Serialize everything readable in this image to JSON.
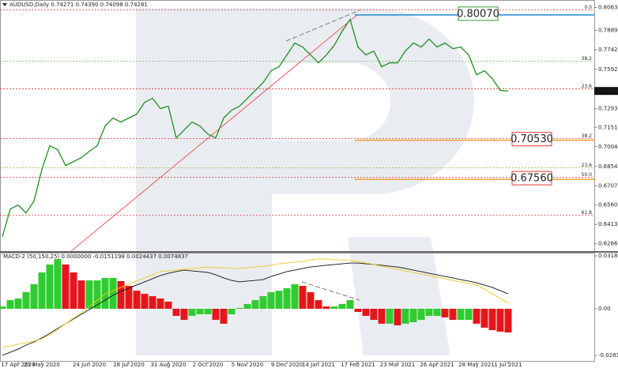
{
  "chart_data": [
    {
      "type": "line",
      "title": "AUDUSD,Daily  0.74271 0.74390 0.74098 0.74281",
      "values": [
        0.632,
        0.653,
        0.656,
        0.65,
        0.6591,
        0.6831,
        0.7011,
        0.6981,
        0.6861,
        0.6891,
        0.6921,
        0.6969,
        0.7011,
        0.7161,
        0.7222,
        0.7192,
        0.7222,
        0.7252,
        0.7342,
        0.7372,
        0.7294,
        0.7312,
        0.7071,
        0.7131,
        0.7192,
        0.7161,
        0.7101,
        0.7071,
        0.7222,
        0.7282,
        0.7312,
        0.7372,
        0.7432,
        0.7492,
        0.7582,
        0.7612,
        0.7702,
        0.7793,
        0.7762,
        0.7702,
        0.7642,
        0.7702,
        0.7775,
        0.7883,
        0.7973,
        0.7762,
        0.7702,
        0.7732,
        0.7612,
        0.7642,
        0.7642,
        0.7732,
        0.7793,
        0.7762,
        0.7823,
        0.7762,
        0.7793,
        0.775,
        0.7762,
        0.7702,
        0.7552,
        0.7582,
        0.7522,
        0.7432,
        0.7428
      ],
      "color": "#1f8f1f",
      "ylim": [
        0.621,
        0.812
      ],
      "yticks": [
        {
          "value": 0.8063,
          "label": "0.80630"
        },
        {
          "value": 0.7889,
          "label": "0.78890"
        },
        {
          "value": 0.7742,
          "label": "0.77420"
        },
        {
          "value": 0.7592,
          "label": "0.75920"
        },
        {
          "value": 0.7293,
          "label": "0.72930"
        },
        {
          "value": 0.7151,
          "label": "0.71510"
        },
        {
          "value": 0.7004,
          "label": "0.70040"
        },
        {
          "value": 0.6854,
          "label": "0.68540"
        },
        {
          "value": 0.6707,
          "label": "0.67070"
        },
        {
          "value": 0.656,
          "label": "0.65600"
        },
        {
          "value": 0.6413,
          "label": "0.64130"
        },
        {
          "value": 0.6266,
          "label": "0.62660"
        }
      ],
      "levels": [
        {
          "label": "0.0",
          "value": 0.8045,
          "color": "#e53935"
        },
        {
          "label": "38.2",
          "value": 0.7654,
          "color": "#7cc46a"
        },
        {
          "label": "23.6",
          "value": 0.7444,
          "color": "#e53935"
        },
        {
          "label": "38.2",
          "value": 0.7065,
          "color": "#e53935"
        },
        {
          "label": "23.6",
          "value": 0.6843,
          "color": "#8ab020"
        },
        {
          "label": "50.0",
          "value": 0.6771,
          "color": "#e53935"
        },
        {
          "label": "61.8",
          "value": 0.6482,
          "color": "#e53935"
        }
      ],
      "price_labels": [
        {
          "value": 0.8007,
          "label": "0.80070",
          "color": "#1e88d0",
          "text_color": "#2e9e2e"
        },
        {
          "value": 0.7053,
          "label": "0.70530",
          "color": "#f0a030",
          "text_color": "#e53935"
        },
        {
          "value": 0.6756,
          "label": "0.67560",
          "color": "#f0a030",
          "text_color": "#e53935"
        }
      ],
      "last_price": 0.74281
    },
    {
      "type": "bar",
      "title": "MACD-2 (50,150,25) 0.0000000 -0.0151198 0.0024437 0.0074837",
      "categories": [
        null,
        null,
        "17 Apr 2020",
        null,
        null,
        "21 May 2020",
        null,
        null,
        null,
        null,
        null,
        "24 Jun 2020",
        null,
        null,
        null,
        null,
        "28 Jul 2020",
        null,
        null,
        null,
        null,
        "31 Aug 2020",
        null,
        null,
        null,
        null,
        "2 Oct 2020",
        null,
        null,
        null,
        null,
        "5 Nov 2020",
        null,
        null,
        null,
        null,
        "9 Dec 2020",
        null,
        null,
        null,
        "14 Jan 2021",
        null,
        null,
        null,
        null,
        "17 Feb 2021",
        null,
        null,
        null,
        null,
        "23 Mar 2021",
        null,
        null,
        null,
        null,
        "26 Apr 2021",
        null,
        null,
        null,
        null,
        "28 May 2021",
        null,
        null,
        null,
        "1 Jul 2021"
      ],
      "values": [
        0.0014,
        0.0052,
        0.0062,
        0.01,
        0.0148,
        0.0219,
        0.0267,
        0.03,
        0.0267,
        0.0219,
        0.0171,
        0.0171,
        0.0171,
        0.0186,
        0.0186,
        0.0167,
        0.0138,
        0.0109,
        0.009,
        0.0076,
        0.0062,
        0.0043,
        -0.0043,
        -0.0067,
        -0.0043,
        -0.0033,
        -0.0033,
        -0.0067,
        -0.009,
        -0.0033,
        0.0005,
        0.0029,
        0.0052,
        0.0076,
        0.01,
        0.0109,
        0.0124,
        0.0148,
        0.0138,
        0.01,
        0.0052,
        0.0014,
        0.0014,
        0.0029,
        0.0052,
        -0.0019,
        -0.0043,
        -0.0067,
        -0.009,
        -0.009,
        -0.01,
        -0.009,
        -0.0081,
        -0.0067,
        -0.0043,
        -0.0043,
        -0.0052,
        -0.0067,
        -0.0067,
        -0.0067,
        -0.009,
        -0.0114,
        -0.0129,
        -0.0138,
        -0.0143
      ],
      "up_color": "#2ecc2e",
      "down_color": "#e3171b",
      "lines": [
        {
          "color": "#111111",
          "values": [
            -0.0281,
            -0.0262,
            -0.0243,
            -0.0219,
            -0.02,
            -0.0176,
            -0.0148,
            -0.0119,
            -0.009,
            -0.0062,
            -0.0033,
            -0.0005,
            0.0024,
            0.0052,
            0.0081,
            0.0105,
            0.0124,
            0.0143,
            0.0162,
            0.0181,
            0.02,
            0.0214,
            0.0224,
            0.0233,
            0.0228,
            0.0224,
            0.0219,
            0.0205,
            0.0186,
            0.0171,
            0.0162,
            0.0167,
            0.0171,
            0.0176,
            0.0195,
            0.0209,
            0.0224,
            0.0233,
            0.0243,
            0.0252,
            0.0257,
            0.0262,
            0.0267,
            0.0271,
            0.0276,
            0.0276,
            0.0271,
            0.0267,
            0.0262,
            0.0257,
            0.0252,
            0.0243,
            0.0233,
            0.0224,
            0.0214,
            0.0205,
            0.0195,
            0.0186,
            0.0176,
            0.0167,
            0.0157,
            0.0143,
            0.0129,
            0.0109,
            0.009
          ]
        },
        {
          "color": "#f2c61f",
          "values": [
            -0.0233,
            -0.0224,
            -0.0214,
            -0.0205,
            -0.0195,
            -0.0181,
            -0.0157,
            -0.0124,
            -0.009,
            -0.0057,
            -0.0024,
            0.0014,
            0.0052,
            0.009,
            0.0109,
            0.0129,
            0.0148,
            0.0167,
            0.0186,
            0.0205,
            0.0224,
            0.0228,
            0.0233,
            0.0238,
            0.0243,
            0.0247,
            0.0252,
            0.0247,
            0.0247,
            0.0243,
            0.0243,
            0.0247,
            0.0252,
            0.0257,
            0.0262,
            0.0271,
            0.0276,
            0.0281,
            0.0286,
            0.0295,
            0.03,
            0.03,
            0.0295,
            0.0295,
            0.029,
            0.0286,
            0.0276,
            0.0267,
            0.0257,
            0.0247,
            0.0238,
            0.0228,
            0.0219,
            0.0209,
            0.02,
            0.019,
            0.0181,
            0.0171,
            0.0162,
            0.0152,
            0.0143,
            0.0119,
            0.009,
            0.0062,
            0.0033
          ]
        }
      ],
      "ylim": [
        -0.0319,
        0.0338
      ],
      "yticks": [
        0.0318824,
        {
          "value": 0,
          "label": "0.00"
        },
        -0.028155
      ]
    }
  ]
}
